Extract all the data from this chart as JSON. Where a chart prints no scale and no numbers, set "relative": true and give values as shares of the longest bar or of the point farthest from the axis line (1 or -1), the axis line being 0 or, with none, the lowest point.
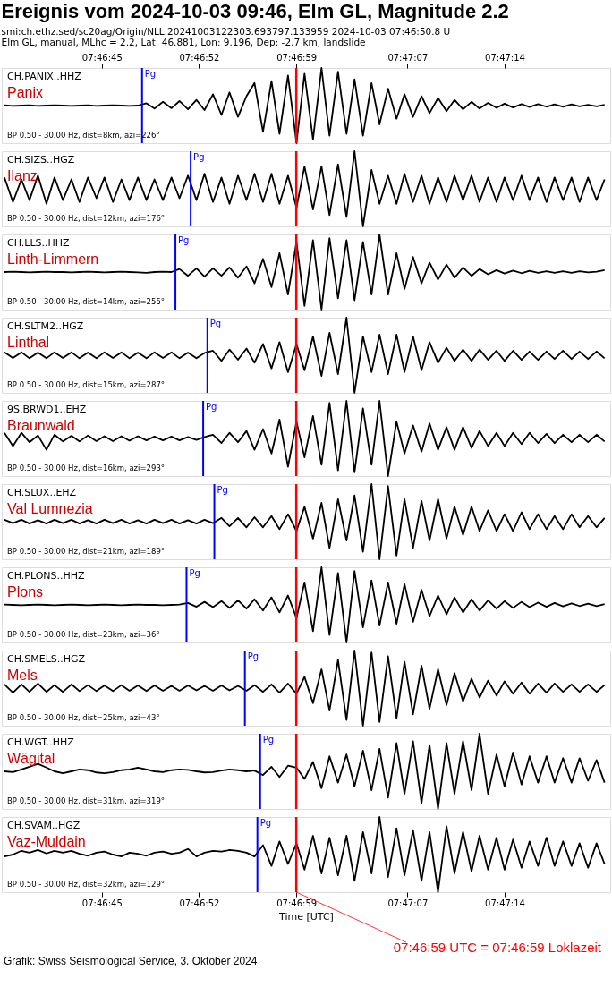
{
  "chart_data": [
    {
      "type": "line",
      "relative": true,
      "tick_labels": "x2",
      "title": "Ereignis vom 2024-10-03 09:46, Elm GL, Magnitude 2.2",
      "subtitle": "smi:ch.ethz.sed/sc20ag/Origin/NLL.20241003122303.693797.133959 2024-10-03 07:46:50.8 U",
      "annotations": [
        "CH.PANIX..HHZ",
        "Panix",
        "BP 0.50 - 30.00 Hz, dist=8km, azi=226°",
        "Elm GL, manual, MLhc = 2.2, Lat: 46.881, Lon: 9.196, Dep: -2.7 km, landslide"
      ],
      "xlim": [
        7.777167,
        7.789333
      ],
      "x2lim": [
        7.777167,
        7.789333
      ],
      "x2ticks": [
        {
          "value": 7.779167,
          "label": "07:46:45"
        },
        {
          "value": 7.781111,
          "label": "07:46:52"
        },
        {
          "value": 7.783056,
          "label": "07:46:59"
        },
        {
          "value": 7.785278,
          "label": "07:47:07"
        },
        {
          "value": 7.787222,
          "label": "07:47:14"
        }
      ],
      "ref_lines": [
        {
          "axis": "x",
          "value": 7.779972,
          "label": "Pg",
          "color": "#0000ff"
        },
        {
          "axis": "x",
          "value": 7.783056,
          "color": "#ff0000"
        }
      ],
      "x": [
        7.77722,
        7.77739,
        7.77756,
        7.77772,
        7.77789,
        7.77806,
        7.77822,
        7.77839,
        7.77856,
        7.77872,
        7.77889,
        7.77906,
        7.77922,
        7.77939,
        7.77956,
        7.77972,
        7.77989,
        7.78006,
        7.78022,
        7.78039,
        7.78056,
        7.78072,
        7.78089,
        7.78106,
        7.78122,
        7.78139,
        7.78156,
        7.78172,
        7.78189,
        7.78206,
        7.78222,
        7.78239,
        7.78256,
        7.78272,
        7.78289,
        7.78306,
        7.78322,
        7.78339,
        7.78356,
        7.78372,
        7.78389,
        7.78406,
        7.78422,
        7.78439,
        7.78456,
        7.78472,
        7.78489,
        7.78506,
        7.78522,
        7.78539,
        7.78556,
        7.78572,
        7.78589,
        7.78606,
        7.78622,
        7.78639,
        7.78656,
        7.78672,
        7.78689,
        7.78706,
        7.78722,
        7.78739,
        7.78756,
        7.78772,
        7.78789,
        7.78806,
        7.78822,
        7.78839,
        7.78856,
        7.78872,
        7.78889,
        7.78906,
        7.78922
      ],
      "series": [
        {
          "color": "#000000",
          "values": [
            0.505,
            0.495,
            0.5,
            0.505,
            0.495,
            0.5,
            0.505,
            0.5,
            0.495,
            0.5,
            0.505,
            0.495,
            0.5,
            0.505,
            0.5,
            0.495,
            0.5,
            0.53,
            0.46,
            0.55,
            0.465,
            0.56,
            0.45,
            0.575,
            0.44,
            0.65,
            0.375,
            0.675,
            0.35,
            0.625,
            0.8,
            0.15,
            0.825,
            0.125,
            0.9,
            0,
            0.925,
            0.05,
            1,
            0.1,
            0.95,
            0.125,
            0.85,
            0.1,
            0.8,
            0.25,
            0.725,
            0.325,
            0.65,
            0.35,
            0.625,
            0.4,
            0.6,
            0.425,
            0.575,
            0.45,
            0.55,
            0.46,
            0.535,
            0.47,
            0.525,
            0.475,
            0.52,
            0.48,
            0.52,
            0.485,
            0.515,
            0.485,
            0.515,
            0.49,
            0.51,
            0.49,
            0.51
          ]
        }
      ]
    },
    {
      "type": "line",
      "relative": true,
      "tick_labels": false,
      "annotations": [
        "CH.SIZS..HGZ",
        "Ilanz",
        "BP 0.50 - 30.00 Hz, dist=12km, azi=176°"
      ],
      "xlim": [
        7.777167,
        7.789333
      ],
      "ref_lines": [
        {
          "axis": "x",
          "value": 7.780944,
          "label": "Pg",
          "color": "#0000ff"
        },
        {
          "axis": "x",
          "value": 7.783056,
          "color": "#ff0000"
        }
      ],
      "x": [
        7.77722,
        7.77739,
        7.77756,
        7.77772,
        7.77789,
        7.77806,
        7.77822,
        7.77839,
        7.77856,
        7.77872,
        7.77889,
        7.77906,
        7.77922,
        7.77939,
        7.77956,
        7.77972,
        7.77989,
        7.78006,
        7.78022,
        7.78039,
        7.78056,
        7.78072,
        7.78089,
        7.78106,
        7.78122,
        7.78139,
        7.78156,
        7.78172,
        7.78189,
        7.78206,
        7.78222,
        7.78239,
        7.78256,
        7.78272,
        7.78289,
        7.78306,
        7.78322,
        7.78339,
        7.78356,
        7.78372,
        7.78389,
        7.78406,
        7.78422,
        7.78439,
        7.78456,
        7.78472,
        7.78489,
        7.78506,
        7.78522,
        7.78539,
        7.78556,
        7.78572,
        7.78589,
        7.78606,
        7.78622,
        7.78639,
        7.78656,
        7.78672,
        7.78689,
        7.78706,
        7.78722,
        7.78739,
        7.78756,
        7.78772,
        7.78789,
        7.78806,
        7.78822,
        7.78839,
        7.78856,
        7.78872,
        7.78889,
        7.78906,
        7.78922
      ],
      "series": [
        {
          "color": "#000000",
          "values": [
            0.65,
            0.325,
            0.625,
            0.35,
            0.675,
            0.3,
            0.65,
            0.35,
            0.625,
            0.325,
            0.65,
            0.375,
            0.65,
            0.325,
            0.625,
            0.35,
            0.65,
            0.35,
            0.625,
            0.35,
            0.65,
            0.375,
            0.675,
            0.35,
            0.7,
            0.325,
            0.65,
            0.3,
            0.675,
            0.35,
            0.7,
            0.325,
            0.7,
            0.3,
            0.675,
            0.25,
            0.8,
            0.225,
            0.8,
            0.15,
            0.825,
            0.125,
            1,
            0,
            0.75,
            0.3,
            0.675,
            0.3,
            0.7,
            0.325,
            0.675,
            0.3,
            0.65,
            0.325,
            0.675,
            0.35,
            0.675,
            0.325,
            0.65,
            0.325,
            0.65,
            0.35,
            0.675,
            0.35,
            0.65,
            0.325,
            0.65,
            0.35,
            0.65,
            0.325,
            0.65,
            0.35,
            0.625
          ]
        }
      ]
    },
    {
      "type": "line",
      "relative": true,
      "tick_labels": false,
      "annotations": [
        "CH.LLS..HHZ",
        "Linth-Limmern",
        "BP 0.50 - 30.00 Hz, dist=14km, azi=255°"
      ],
      "xlim": [
        7.777167,
        7.789333
      ],
      "ref_lines": [
        {
          "axis": "x",
          "value": 7.780639,
          "label": "Pg",
          "color": "#0000ff"
        },
        {
          "axis": "x",
          "value": 7.783056,
          "color": "#ff0000"
        }
      ],
      "x": [
        7.77722,
        7.77739,
        7.77756,
        7.77772,
        7.77789,
        7.77806,
        7.77822,
        7.77839,
        7.77856,
        7.77872,
        7.77889,
        7.77906,
        7.77922,
        7.77939,
        7.77956,
        7.77972,
        7.77989,
        7.78006,
        7.78022,
        7.78039,
        7.78056,
        7.78072,
        7.78089,
        7.78106,
        7.78122,
        7.78139,
        7.78156,
        7.78172,
        7.78189,
        7.78206,
        7.78222,
        7.78239,
        7.78256,
        7.78272,
        7.78289,
        7.78306,
        7.78322,
        7.78339,
        7.78356,
        7.78372,
        7.78389,
        7.78406,
        7.78422,
        7.78439,
        7.78456,
        7.78472,
        7.78489,
        7.78506,
        7.78522,
        7.78539,
        7.78556,
        7.78572,
        7.78589,
        7.78606,
        7.78622,
        7.78639,
        7.78656,
        7.78672,
        7.78689,
        7.78706,
        7.78722,
        7.78739,
        7.78756,
        7.78772,
        7.78789,
        7.78806,
        7.78822,
        7.78839,
        7.78856,
        7.78872,
        7.78889,
        7.78906,
        7.78922
      ],
      "series": [
        {
          "color": "#000000",
          "values": [
            0.5,
            0.505,
            0.5,
            0.495,
            0.5,
            0.505,
            0.5,
            0.5,
            0.495,
            0.5,
            0.505,
            0.5,
            0.495,
            0.5,
            0.505,
            0.5,
            0.495,
            0.49,
            0.5,
            0.505,
            0.5,
            0.54,
            0.45,
            0.55,
            0.44,
            0.55,
            0.45,
            0.56,
            0.425,
            0.575,
            0.35,
            0.675,
            0.3,
            0.75,
            0.2,
            0.9,
            0.05,
            0.925,
            0,
            0.95,
            0.15,
            0.925,
            0.125,
            0.9,
            0.2,
            1,
            0.2,
            0.75,
            0.275,
            0.7,
            0.35,
            0.625,
            0.4,
            0.6,
            0.425,
            0.56,
            0.45,
            0.54,
            0.47,
            0.525,
            0.48,
            0.52,
            0.485,
            0.515,
            0.49,
            0.51,
            0.49,
            0.51,
            0.49,
            0.51,
            0.495,
            0.505,
            0.525
          ]
        }
      ]
    },
    {
      "type": "line",
      "relative": true,
      "tick_labels": false,
      "annotations": [
        "CH.SLTM2..HGZ",
        "Linthal",
        "BP 0.50 - 30.00 Hz, dist=15km, azi=287°"
      ],
      "xlim": [
        7.777167,
        7.789333
      ],
      "ref_lines": [
        {
          "axis": "x",
          "value": 7.781278,
          "label": "Pg",
          "color": "#0000ff"
        },
        {
          "axis": "x",
          "value": 7.783056,
          "color": "#ff0000"
        }
      ],
      "x": [
        7.77722,
        7.77739,
        7.77756,
        7.77772,
        7.77789,
        7.77806,
        7.77822,
        7.77839,
        7.77856,
        7.77872,
        7.77889,
        7.77906,
        7.77922,
        7.77939,
        7.77956,
        7.77972,
        7.77989,
        7.78006,
        7.78022,
        7.78039,
        7.78056,
        7.78072,
        7.78089,
        7.78106,
        7.78122,
        7.78139,
        7.78156,
        7.78172,
        7.78189,
        7.78206,
        7.78222,
        7.78239,
        7.78256,
        7.78272,
        7.78289,
        7.78306,
        7.78322,
        7.78339,
        7.78356,
        7.78372,
        7.78389,
        7.78406,
        7.78422,
        7.78439,
        7.78456,
        7.78472,
        7.78489,
        7.78506,
        7.78522,
        7.78539,
        7.78556,
        7.78572,
        7.78589,
        7.78606,
        7.78622,
        7.78639,
        7.78656,
        7.78672,
        7.78689,
        7.78706,
        7.78722,
        7.78739,
        7.78756,
        7.78772,
        7.78789,
        7.78806,
        7.78822,
        7.78839,
        7.78856,
        7.78872,
        7.78889,
        7.78906,
        7.78922
      ],
      "series": [
        {
          "color": "#000000",
          "values": [
            0.54,
            0.465,
            0.54,
            0.46,
            0.535,
            0.46,
            0.54,
            0.465,
            0.54,
            0.46,
            0.535,
            0.46,
            0.54,
            0.465,
            0.54,
            0.46,
            0.535,
            0.46,
            0.54,
            0.465,
            0.54,
            0.46,
            0.535,
            0.46,
            0.53,
            0.56,
            0.425,
            0.575,
            0.44,
            0.59,
            0.4,
            0.65,
            0.325,
            0.675,
            0.275,
            0.65,
            0.3,
            0.75,
            0.225,
            0.8,
            0.25,
            1,
            0,
            0.75,
            0.275,
            0.775,
            0.25,
            0.775,
            0.275,
            0.75,
            0.3,
            0.675,
            0.4,
            0.6,
            0.425,
            0.575,
            0.425,
            0.575,
            0.44,
            0.56,
            0.425,
            0.56,
            0.44,
            0.55,
            0.44,
            0.55,
            0.45,
            0.56,
            0.45,
            0.55,
            0.45,
            0.55,
            0.46
          ]
        }
      ]
    },
    {
      "type": "line",
      "relative": true,
      "tick_labels": false,
      "annotations": [
        "9S.BRWD1..EHZ",
        "Braunwald",
        "BP 0.50 - 30.00 Hz, dist=16km, azi=293°"
      ],
      "xlim": [
        7.777167,
        7.789333
      ],
      "ref_lines": [
        {
          "axis": "x",
          "value": 7.781194,
          "label": "Pg",
          "color": "#0000ff"
        },
        {
          "axis": "x",
          "value": 7.783056,
          "color": "#ff0000"
        }
      ],
      "x": [
        7.77722,
        7.77739,
        7.77756,
        7.77772,
        7.77789,
        7.77806,
        7.77822,
        7.77839,
        7.77856,
        7.77872,
        7.77889,
        7.77906,
        7.77922,
        7.77939,
        7.77956,
        7.77972,
        7.77989,
        7.78006,
        7.78022,
        7.78039,
        7.78056,
        7.78072,
        7.78089,
        7.78106,
        7.78122,
        7.78139,
        7.78156,
        7.78172,
        7.78189,
        7.78206,
        7.78222,
        7.78239,
        7.78256,
        7.78272,
        7.78289,
        7.78306,
        7.78322,
        7.78339,
        7.78356,
        7.78372,
        7.78389,
        7.78406,
        7.78422,
        7.78439,
        7.78456,
        7.78472,
        7.78489,
        7.78506,
        7.78522,
        7.78539,
        7.78556,
        7.78572,
        7.78589,
        7.78606,
        7.78622,
        7.78639,
        7.78656,
        7.78672,
        7.78689,
        7.78706,
        7.78722,
        7.78739,
        7.78756,
        7.78772,
        7.78789,
        7.78806,
        7.78822,
        7.78839,
        7.78856,
        7.78872,
        7.78889,
        7.78906,
        7.78922
      ],
      "series": [
        {
          "color": "#000000",
          "values": [
            0.575,
            0.4,
            0.575,
            0.45,
            0.54,
            0.35,
            0.55,
            0.46,
            0.535,
            0.46,
            0.54,
            0.465,
            0.53,
            0.465,
            0.53,
            0.47,
            0.53,
            0.475,
            0.525,
            0.475,
            0.525,
            0.475,
            0.52,
            0.48,
            0.52,
            0.55,
            0.44,
            0.575,
            0.45,
            0.6,
            0.35,
            0.625,
            0.3,
            0.75,
            0.125,
            0.725,
            0.25,
            0.8,
            0.15,
            0.975,
            0.075,
            1,
            0.05,
            0.9,
            0.15,
            1,
            0,
            0.725,
            0.3,
            0.675,
            0.325,
            0.7,
            0.35,
            0.65,
            0.35,
            0.65,
            0.375,
            0.6,
            0.4,
            0.575,
            0.4,
            0.575,
            0.425,
            0.575,
            0.44,
            0.56,
            0.44,
            0.55,
            0.45,
            0.55,
            0.45,
            0.55,
            0.46
          ]
        }
      ]
    },
    {
      "type": "line",
      "relative": true,
      "tick_labels": false,
      "annotations": [
        "CH.SLUX..EHZ",
        "Val Lumnezia",
        "BP 0.50 - 30.00 Hz, dist=21km, azi=189°"
      ],
      "xlim": [
        7.777167,
        7.789333
      ],
      "ref_lines": [
        {
          "axis": "x",
          "value": 7.781417,
          "label": "Pg",
          "color": "#0000ff"
        },
        {
          "axis": "x",
          "value": 7.783056,
          "color": "#ff0000"
        }
      ],
      "x": [
        7.77722,
        7.77739,
        7.77756,
        7.77772,
        7.77789,
        7.77806,
        7.77822,
        7.77839,
        7.77856,
        7.77872,
        7.77889,
        7.77906,
        7.77922,
        7.77939,
        7.77956,
        7.77972,
        7.77989,
        7.78006,
        7.78022,
        7.78039,
        7.78056,
        7.78072,
        7.78089,
        7.78106,
        7.78122,
        7.78139,
        7.78156,
        7.78172,
        7.78189,
        7.78206,
        7.78222,
        7.78239,
        7.78256,
        7.78272,
        7.78289,
        7.78306,
        7.78322,
        7.78339,
        7.78356,
        7.78372,
        7.78389,
        7.78406,
        7.78422,
        7.78439,
        7.78456,
        7.78472,
        7.78489,
        7.78506,
        7.78522,
        7.78539,
        7.78556,
        7.78572,
        7.78589,
        7.78606,
        7.78622,
        7.78639,
        7.78656,
        7.78672,
        7.78689,
        7.78706,
        7.78722,
        7.78739,
        7.78756,
        7.78772,
        7.78789,
        7.78806,
        7.78822,
        7.78839,
        7.78856,
        7.78872,
        7.78889,
        7.78906,
        7.78922
      ],
      "series": [
        {
          "color": "#000000",
          "values": [
            0.525,
            0.48,
            0.525,
            0.475,
            0.52,
            0.475,
            0.525,
            0.48,
            0.525,
            0.475,
            0.52,
            0.475,
            0.525,
            0.48,
            0.525,
            0.475,
            0.52,
            0.475,
            0.525,
            0.48,
            0.525,
            0.475,
            0.52,
            0.475,
            0.525,
            0.48,
            0.55,
            0.44,
            0.55,
            0.425,
            0.56,
            0.425,
            0.575,
            0.4,
            0.6,
            0.375,
            0.7,
            0.275,
            0.75,
            0.15,
            0.8,
            0.25,
            0.85,
            0.1,
            1,
            0,
            0.975,
            0.05,
            0.8,
            0.15,
            0.775,
            0.25,
            0.8,
            0.275,
            0.7,
            0.325,
            0.7,
            0.375,
            0.65,
            0.375,
            0.6,
            0.375,
            0.625,
            0.4,
            0.6,
            0.4,
            0.575,
            0.4,
            0.6,
            0.425,
            0.575,
            0.425,
            0.55
          ]
        }
      ]
    },
    {
      "type": "line",
      "relative": true,
      "tick_labels": false,
      "annotations": [
        "CH.PLONS..HHZ",
        "Plons",
        "BP 0.50 - 30.00 Hz, dist=23km, azi=36°"
      ],
      "xlim": [
        7.777167,
        7.789333
      ],
      "ref_lines": [
        {
          "axis": "x",
          "value": 7.780861,
          "label": "Pg",
          "color": "#0000ff"
        },
        {
          "axis": "x",
          "value": 7.783056,
          "color": "#ff0000"
        }
      ],
      "x": [
        7.77722,
        7.77739,
        7.77756,
        7.77772,
        7.77789,
        7.77806,
        7.77822,
        7.77839,
        7.77856,
        7.77872,
        7.77889,
        7.77906,
        7.77922,
        7.77939,
        7.77956,
        7.77972,
        7.77989,
        7.78006,
        7.78022,
        7.78039,
        7.78056,
        7.78072,
        7.78089,
        7.78106,
        7.78122,
        7.78139,
        7.78156,
        7.78172,
        7.78189,
        7.78206,
        7.78222,
        7.78239,
        7.78256,
        7.78272,
        7.78289,
        7.78306,
        7.78322,
        7.78339,
        7.78356,
        7.78372,
        7.78389,
        7.78406,
        7.78422,
        7.78439,
        7.78456,
        7.78472,
        7.78489,
        7.78506,
        7.78522,
        7.78539,
        7.78556,
        7.78572,
        7.78589,
        7.78606,
        7.78622,
        7.78639,
        7.78656,
        7.78672,
        7.78689,
        7.78706,
        7.78722,
        7.78739,
        7.78756,
        7.78772,
        7.78789,
        7.78806,
        7.78822,
        7.78839,
        7.78856,
        7.78872,
        7.78889,
        7.78906,
        7.78922
      ],
      "series": [
        {
          "color": "#000000",
          "values": [
            0.505,
            0.5,
            0.495,
            0.5,
            0.505,
            0.5,
            0.495,
            0.5,
            0.505,
            0.5,
            0.495,
            0.5,
            0.505,
            0.5,
            0.495,
            0.5,
            0.505,
            0.5,
            0.5,
            0.495,
            0.5,
            0.505,
            0.525,
            0.475,
            0.54,
            0.47,
            0.55,
            0.46,
            0.56,
            0.45,
            0.575,
            0.425,
            0.6,
            0.4,
            0.625,
            0.325,
            0.8,
            0.15,
            1,
            0.1,
            0.925,
            0,
            0.95,
            0.2,
            0.825,
            0.225,
            0.8,
            0.25,
            0.775,
            0.275,
            0.7,
            0.35,
            0.625,
            0.375,
            0.6,
            0.4,
            0.575,
            0.425,
            0.56,
            0.45,
            0.55,
            0.46,
            0.54,
            0.47,
            0.53,
            0.475,
            0.525,
            0.48,
            0.52,
            0.485,
            0.515,
            0.485,
            0.51
          ]
        }
      ]
    },
    {
      "type": "line",
      "relative": true,
      "tick_labels": false,
      "annotations": [
        "CH.SMELS..HGZ",
        "Mels",
        "BP 0.50 - 30.00 Hz, dist=25km, azi=43°"
      ],
      "xlim": [
        7.777167,
        7.789333
      ],
      "ref_lines": [
        {
          "axis": "x",
          "value": 7.782028,
          "label": "Pg",
          "color": "#0000ff"
        },
        {
          "axis": "x",
          "value": 7.783056,
          "color": "#ff0000"
        }
      ],
      "x": [
        7.77722,
        7.77739,
        7.77756,
        7.77772,
        7.77789,
        7.77806,
        7.77822,
        7.77839,
        7.77856,
        7.77872,
        7.77889,
        7.77906,
        7.77922,
        7.77939,
        7.77956,
        7.77972,
        7.77989,
        7.78006,
        7.78022,
        7.78039,
        7.78056,
        7.78072,
        7.78089,
        7.78106,
        7.78122,
        7.78139,
        7.78156,
        7.78172,
        7.78189,
        7.78206,
        7.78222,
        7.78239,
        7.78256,
        7.78272,
        7.78289,
        7.78306,
        7.78322,
        7.78339,
        7.78356,
        7.78372,
        7.78389,
        7.78406,
        7.78422,
        7.78439,
        7.78456,
        7.78472,
        7.78489,
        7.78506,
        7.78522,
        7.78539,
        7.78556,
        7.78572,
        7.78589,
        7.78606,
        7.78622,
        7.78639,
        7.78656,
        7.78672,
        7.78689,
        7.78706,
        7.78722,
        7.78739,
        7.78756,
        7.78772,
        7.78789,
        7.78806,
        7.78822,
        7.78839,
        7.78856,
        7.78872,
        7.78889,
        7.78906,
        7.78922
      ],
      "series": [
        {
          "color": "#000000",
          "values": [
            0.55,
            0.44,
            0.55,
            0.45,
            0.56,
            0.45,
            0.54,
            0.45,
            0.55,
            0.46,
            0.54,
            0.46,
            0.535,
            0.46,
            0.54,
            0.465,
            0.535,
            0.46,
            0.535,
            0.465,
            0.53,
            0.465,
            0.535,
            0.47,
            0.53,
            0.465,
            0.535,
            0.47,
            0.53,
            0.465,
            0.54,
            0.45,
            0.55,
            0.44,
            0.56,
            0.425,
            0.65,
            0.3,
            0.75,
            0.2,
            0.875,
            0.075,
            1,
            0,
            0.975,
            0.05,
            0.925,
            0.1,
            0.85,
            0.15,
            0.8,
            0.225,
            0.75,
            0.275,
            0.7,
            0.325,
            0.625,
            0.375,
            0.6,
            0.4,
            0.59,
            0.425,
            0.575,
            0.425,
            0.56,
            0.44,
            0.56,
            0.45,
            0.55,
            0.45,
            0.55,
            0.45,
            0.54
          ]
        }
      ]
    },
    {
      "type": "line",
      "relative": true,
      "tick_labels": false,
      "annotations": [
        "CH.WGT..HHZ",
        "Wägital",
        "BP 0.50 - 30.00 Hz, dist=31km, azi=319°"
      ],
      "xlim": [
        7.777167,
        7.789333
      ],
      "ref_lines": [
        {
          "axis": "x",
          "value": 7.782333,
          "label": "Pg",
          "color": "#0000ff"
        },
        {
          "axis": "x",
          "value": 7.783056,
          "color": "#ff0000"
        }
      ],
      "x": [
        7.77722,
        7.77739,
        7.77756,
        7.77772,
        7.77789,
        7.77806,
        7.77822,
        7.77839,
        7.77856,
        7.77872,
        7.77889,
        7.77906,
        7.77922,
        7.77939,
        7.77956,
        7.77972,
        7.77989,
        7.78006,
        7.78022,
        7.78039,
        7.78056,
        7.78072,
        7.78089,
        7.78106,
        7.78122,
        7.78139,
        7.78156,
        7.78172,
        7.78189,
        7.78206,
        7.78222,
        7.78239,
        7.78256,
        7.78272,
        7.78289,
        7.78306,
        7.78322,
        7.78339,
        7.78356,
        7.78372,
        7.78389,
        7.78406,
        7.78422,
        7.78439,
        7.78456,
        7.78472,
        7.78489,
        7.78506,
        7.78522,
        7.78539,
        7.78556,
        7.78572,
        7.78589,
        7.78606,
        7.78622,
        7.78639,
        7.78656,
        7.78672,
        7.78689,
        7.78706,
        7.78722,
        7.78739,
        7.78756,
        7.78772,
        7.78789,
        7.78806,
        7.78822,
        7.78839,
        7.78856,
        7.78872,
        7.78889,
        7.78906,
        7.78922
      ],
      "series": [
        {
          "color": "#000000",
          "values": [
            0.5,
            0.49,
            0.525,
            0.56,
            0.6,
            0.55,
            0.5,
            0.475,
            0.5,
            0.525,
            0.515,
            0.485,
            0.475,
            0.49,
            0.515,
            0.525,
            0.55,
            0.525,
            0.5,
            0.49,
            0.515,
            0.525,
            0.52,
            0.5,
            0.485,
            0.49,
            0.51,
            0.525,
            0.515,
            0.5,
            0.51,
            0.45,
            0.56,
            0.425,
            0.575,
            0.55,
            0.4,
            0.625,
            0.275,
            0.7,
            0.35,
            0.725,
            0.3,
            0.775,
            0.25,
            0.8,
            0.15,
            0.875,
            0.2,
            0.9,
            0.075,
            0.85,
            0,
            0.875,
            0.2,
            0.9,
            0.25,
            1,
            0.2,
            0.725,
            0.3,
            0.75,
            0.325,
            0.7,
            0.35,
            0.7,
            0.35,
            0.675,
            0.35,
            0.675,
            0.375,
            0.65,
            0.35
          ]
        }
      ]
    },
    {
      "type": "line",
      "relative": true,
      "tick_labels": "x",
      "xlabel": "Time [UTC]",
      "annotations": [
        "CH.SVAM..HGZ",
        "Vaz-Muldain",
        "BP 0.50 - 30.00 Hz, dist=32km, azi=129°",
        "07:46:59 UTC = 07:46:59 Loklazeit",
        "Grafik: Swiss Seismological Service, 3. Oktober 2024"
      ],
      "xlim": [
        7.777167,
        7.789333
      ],
      "xticks": [
        {
          "value": 7.779167,
          "label": "07:46:45"
        },
        {
          "value": 7.781111,
          "label": "07:46:52"
        },
        {
          "value": 7.783056,
          "label": "07:46:59"
        },
        {
          "value": 7.785278,
          "label": "07:47:07"
        },
        {
          "value": 7.787222,
          "label": "07:47:14"
        }
      ],
      "ref_lines": [
        {
          "axis": "x",
          "value": 7.782278,
          "label": "Pg",
          "color": "#0000ff"
        },
        {
          "axis": "x",
          "value": 7.783056,
          "color": "#ff0000"
        }
      ],
      "x": [
        7.77722,
        7.77739,
        7.77756,
        7.77772,
        7.77789,
        7.77806,
        7.77822,
        7.77839,
        7.77856,
        7.77872,
        7.77889,
        7.77906,
        7.77922,
        7.77939,
        7.77956,
        7.77972,
        7.77989,
        7.78006,
        7.78022,
        7.78039,
        7.78056,
        7.78072,
        7.78089,
        7.78106,
        7.78122,
        7.78139,
        7.78156,
        7.78172,
        7.78189,
        7.78206,
        7.78222,
        7.78239,
        7.78256,
        7.78272,
        7.78289,
        7.78306,
        7.78322,
        7.78339,
        7.78356,
        7.78372,
        7.78389,
        7.78406,
        7.78422,
        7.78439,
        7.78456,
        7.78472,
        7.78489,
        7.78506,
        7.78522,
        7.78539,
        7.78556,
        7.78572,
        7.78589,
        7.78606,
        7.78622,
        7.78639,
        7.78656,
        7.78672,
        7.78689,
        7.78706,
        7.78722,
        7.78739,
        7.78756,
        7.78772,
        7.78789,
        7.78806,
        7.78822,
        7.78839,
        7.78856,
        7.78872,
        7.78889,
        7.78906,
        7.78922
      ],
      "series": [
        {
          "color": "#000000",
          "values": [
            0.475,
            0.5,
            0.55,
            0.525,
            0.56,
            0.515,
            0.55,
            0.525,
            0.55,
            0.51,
            0.485,
            0.525,
            0.54,
            0.5,
            0.475,
            0.525,
            0.51,
            0.485,
            0.525,
            0.54,
            0.51,
            0.525,
            0.575,
            0.475,
            0.525,
            0.55,
            0.54,
            0.56,
            0.55,
            0.525,
            0.475,
            0.625,
            0.35,
            0.675,
            0.375,
            0.65,
            0.3,
            0.75,
            0.25,
            0.725,
            0.225,
            0.75,
            0.15,
            0.8,
            0.25,
            1,
            0.2,
            0.85,
            0.225,
            0.825,
            0.15,
            0.8,
            0,
            0.875,
            0.25,
            0.8,
            0.275,
            0.75,
            0.3,
            0.725,
            0.3,
            0.7,
            0.325,
            0.675,
            0.35,
            0.725,
            0.35,
            0.675,
            0.35,
            0.65,
            0.325,
            0.65,
            0.375
          ]
        }
      ]
    }
  ]
}
